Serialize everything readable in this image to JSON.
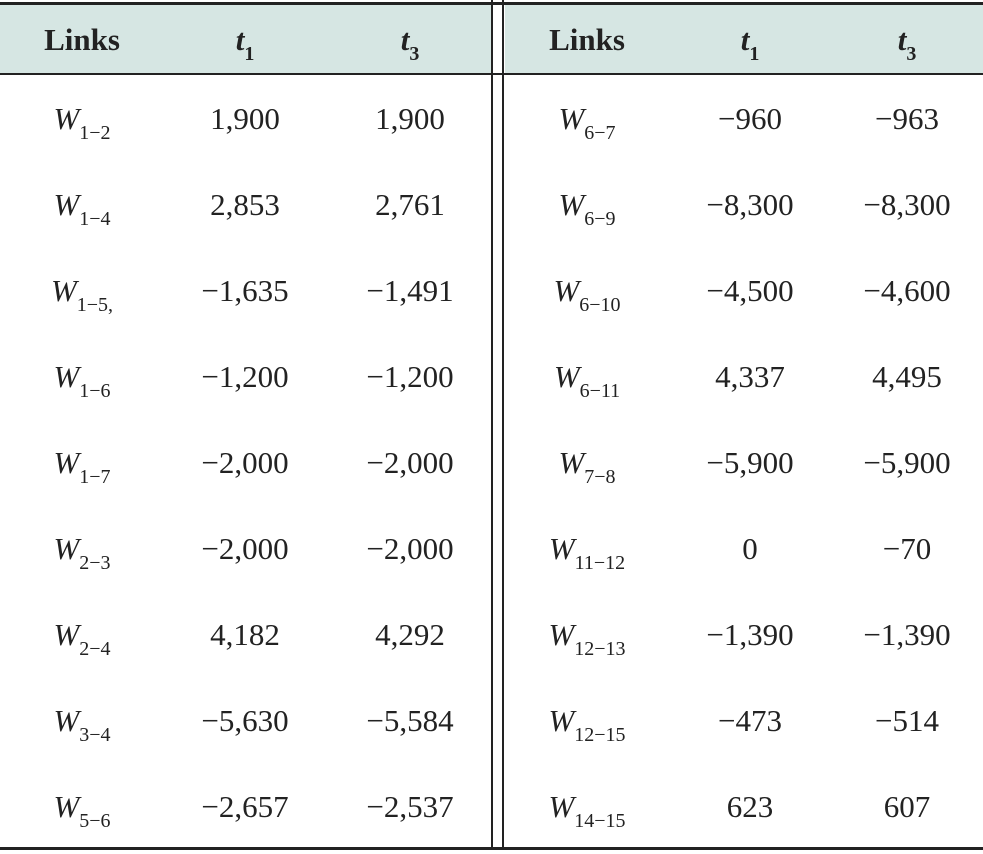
{
  "tables": [
    {
      "header": [
        "Links",
        {
          "base": "t",
          "sub": "1"
        },
        {
          "base": "t",
          "sub": "3"
        }
      ],
      "rows": [
        [
          {
            "base": "W",
            "sub": "1−2"
          },
          "1,900",
          "1,900"
        ],
        [
          {
            "base": "W",
            "sub": "1−4"
          },
          "2,853",
          "2,761"
        ],
        [
          {
            "base": "W",
            "sub": "1−5,"
          },
          "−1,635",
          "−1,491"
        ],
        [
          {
            "base": "W",
            "sub": "1−6"
          },
          "−1,200",
          "−1,200"
        ],
        [
          {
            "base": "W",
            "sub": "1−7"
          },
          "−2,000",
          "−2,000"
        ],
        [
          {
            "base": "W",
            "sub": "2−3"
          },
          "−2,000",
          "−2,000"
        ],
        [
          {
            "base": "W",
            "sub": "2−4"
          },
          "4,182",
          "4,292"
        ],
        [
          {
            "base": "W",
            "sub": "3−4"
          },
          "−5,630",
          "−5,584"
        ],
        [
          {
            "base": "W",
            "sub": "5−6"
          },
          "−2,657",
          "−2,537"
        ]
      ]
    },
    {
      "header": [
        "Links",
        {
          "base": "t",
          "sub": "1"
        },
        {
          "base": "t",
          "sub": "3"
        }
      ],
      "rows": [
        [
          {
            "base": "W",
            "sub": "6−7"
          },
          "−960",
          "−963"
        ],
        [
          {
            "base": "W",
            "sub": "6−9"
          },
          "−8,300",
          "−8,300"
        ],
        [
          {
            "base": "W",
            "sub": "6−10"
          },
          "−4,500",
          "−4,600"
        ],
        [
          {
            "base": "W",
            "sub": "6−11"
          },
          "4,337",
          "4,495"
        ],
        [
          {
            "base": "W",
            "sub": "7−8"
          },
          "−5,900",
          "−5,900"
        ],
        [
          {
            "base": "W",
            "sub": "11−12"
          },
          "0",
          "−70"
        ],
        [
          {
            "base": "W",
            "sub": "12−13"
          },
          "−1,390",
          "−1,390"
        ],
        [
          {
            "base": "W",
            "sub": "12−15"
          },
          "−473",
          "−514"
        ],
        [
          {
            "base": "W",
            "sub": "14−15"
          },
          "623",
          "607"
        ]
      ]
    }
  ]
}
